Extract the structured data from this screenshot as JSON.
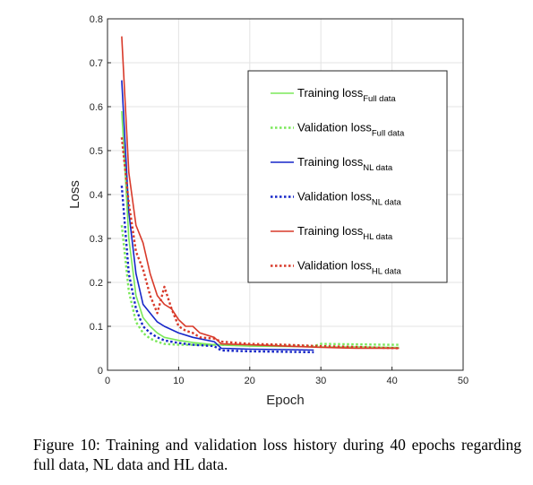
{
  "chart_data": {
    "type": "line",
    "title": "",
    "xlabel": "Epoch",
    "ylabel": "Loss",
    "xlim": [
      0,
      50
    ],
    "ylim": [
      0,
      0.8
    ],
    "xticks": [
      0,
      10,
      20,
      30,
      40,
      50
    ],
    "yticks": [
      0,
      0.1,
      0.2,
      0.3,
      0.4,
      0.5,
      0.6,
      0.7,
      0.8
    ],
    "grid": true,
    "legend_position": "top-right",
    "series": [
      {
        "name": "Training loss",
        "subscript": "Full data",
        "color": "#7be85a",
        "style": "solid",
        "x": [
          2,
          3,
          4,
          5,
          6,
          7,
          8,
          10,
          12,
          15,
          20,
          25,
          30,
          35,
          40,
          41
        ],
        "y": [
          0.59,
          0.3,
          0.17,
          0.12,
          0.1,
          0.085,
          0.075,
          0.068,
          0.063,
          0.058,
          0.055,
          0.054,
          0.053,
          0.053,
          0.052,
          0.052
        ]
      },
      {
        "name": "Validation loss",
        "subscript": "Full data",
        "color": "#7be85a",
        "style": "dotted",
        "x": [
          2,
          3,
          4,
          5,
          6,
          7,
          8,
          10,
          12,
          15,
          20,
          25,
          29,
          30,
          35,
          40,
          41
        ],
        "y": [
          0.33,
          0.18,
          0.11,
          0.085,
          0.072,
          0.065,
          0.06,
          0.058,
          0.058,
          0.058,
          0.057,
          0.056,
          0.055,
          0.06,
          0.059,
          0.058,
          0.058
        ]
      },
      {
        "name": "Training loss",
        "subscript": "NL data",
        "color": "#1626c8",
        "style": "solid",
        "x": [
          2,
          3,
          4,
          5,
          6,
          7,
          8,
          10,
          12,
          15,
          16,
          20,
          25,
          29
        ],
        "y": [
          0.66,
          0.36,
          0.22,
          0.15,
          0.13,
          0.11,
          0.1,
          0.085,
          0.075,
          0.065,
          0.05,
          0.048,
          0.047,
          0.046
        ]
      },
      {
        "name": "Validation loss",
        "subscript": "NL data",
        "color": "#1626c8",
        "style": "dotted",
        "x": [
          2,
          3,
          4,
          5,
          6,
          7,
          8,
          10,
          12,
          15,
          16,
          20,
          25,
          29
        ],
        "y": [
          0.42,
          0.22,
          0.14,
          0.1,
          0.085,
          0.075,
          0.068,
          0.062,
          0.058,
          0.055,
          0.045,
          0.043,
          0.042,
          0.041
        ]
      },
      {
        "name": "Training loss",
        "subscript": "HL data",
        "color": "#d83a2a",
        "style": "solid",
        "x": [
          2,
          3,
          4,
          5,
          6,
          7,
          8,
          9,
          10,
          11,
          12,
          13,
          15,
          16,
          20,
          25,
          30,
          35,
          41
        ],
        "y": [
          0.76,
          0.45,
          0.33,
          0.29,
          0.22,
          0.17,
          0.15,
          0.14,
          0.115,
          0.1,
          0.1,
          0.085,
          0.075,
          0.06,
          0.058,
          0.055,
          0.052,
          0.05,
          0.05
        ]
      },
      {
        "name": "Validation loss",
        "subscript": "HL data",
        "color": "#d83a2a",
        "style": "dotted",
        "x": [
          2,
          3,
          4,
          5,
          6,
          7,
          8,
          9,
          10,
          11,
          12,
          13,
          15,
          16,
          20,
          25,
          30,
          35,
          41
        ],
        "y": [
          0.53,
          0.38,
          0.27,
          0.23,
          0.17,
          0.13,
          0.19,
          0.14,
          0.1,
          0.09,
          0.085,
          0.075,
          0.072,
          0.065,
          0.06,
          0.058,
          0.055,
          0.053,
          0.05
        ]
      }
    ]
  },
  "caption": "Figure 10: Training and validation loss history during 40 epochs regarding full data, NL data and HL data."
}
